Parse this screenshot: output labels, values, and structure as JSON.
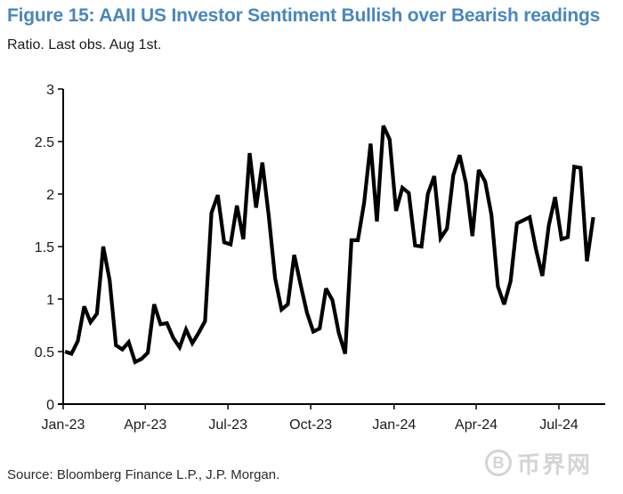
{
  "header": {
    "title": "Figure 15: AAII US Investor Sentiment Bullish over Bearish readings",
    "subtitle": "Ratio. Last obs. Aug 1st."
  },
  "footer": {
    "source": "Source: Bloomberg Finance L.P., J.P. Morgan."
  },
  "watermark": {
    "icon": "bitcoin-icon",
    "symbol": "B",
    "text": "币界网"
  },
  "colors": {
    "title": "#4a86bd",
    "line": "#000000",
    "axis": "#000000"
  },
  "chart_data": {
    "type": "line",
    "title": "Figure 15: AAII US Investor Sentiment Bullish over Bearish readings",
    "subtitle": "Ratio. Last obs. Aug 1st.",
    "xlabel": "",
    "ylabel": "",
    "ylim": [
      0,
      3
    ],
    "yticks": [
      0,
      0.5,
      1,
      1.5,
      2,
      2.5,
      3
    ],
    "ytick_labels": [
      "0",
      "0.5",
      "1",
      "1.5",
      "2",
      "2.5",
      "3"
    ],
    "xticks": [
      "Jan-23",
      "Apr-23",
      "Jul-23",
      "Oct-23",
      "Jan-24",
      "Apr-24",
      "Jul-24"
    ],
    "x_range_weeks": [
      0,
      83
    ],
    "xtick_weeks": [
      0,
      12.9,
      25.9,
      38.9,
      52,
      64.9,
      77.9
    ],
    "grid": false,
    "legend": "none",
    "series": [
      {
        "name": "AAII Bullish/Bearish ratio",
        "frequency": "weekly",
        "start_week": 0.3,
        "values": [
          0.5,
          0.48,
          0.6,
          0.93,
          0.78,
          0.86,
          1.5,
          1.18,
          0.56,
          0.52,
          0.59,
          0.4,
          0.43,
          0.49,
          0.95,
          0.76,
          0.77,
          0.63,
          0.54,
          0.71,
          0.58,
          0.68,
          0.79,
          1.82,
          1.99,
          1.54,
          1.52,
          1.89,
          1.57,
          2.39,
          1.87,
          2.3,
          1.79,
          1.2,
          0.9,
          0.95,
          1.42,
          1.14,
          0.87,
          0.69,
          0.72,
          1.1,
          0.99,
          0.68,
          0.48,
          1.56,
          1.56,
          1.92,
          2.48,
          1.74,
          2.65,
          2.52,
          1.84,
          2.06,
          2.01,
          1.51,
          1.5,
          2.0,
          2.17,
          1.58,
          1.67,
          2.18,
          2.37,
          2.1,
          1.6,
          2.23,
          2.12,
          1.8,
          1.12,
          0.95,
          1.17,
          1.72,
          1.75,
          1.78,
          1.47,
          1.22,
          1.7,
          1.97,
          1.57,
          1.59,
          2.26,
          2.25,
          1.36,
          1.78
        ]
      }
    ]
  }
}
